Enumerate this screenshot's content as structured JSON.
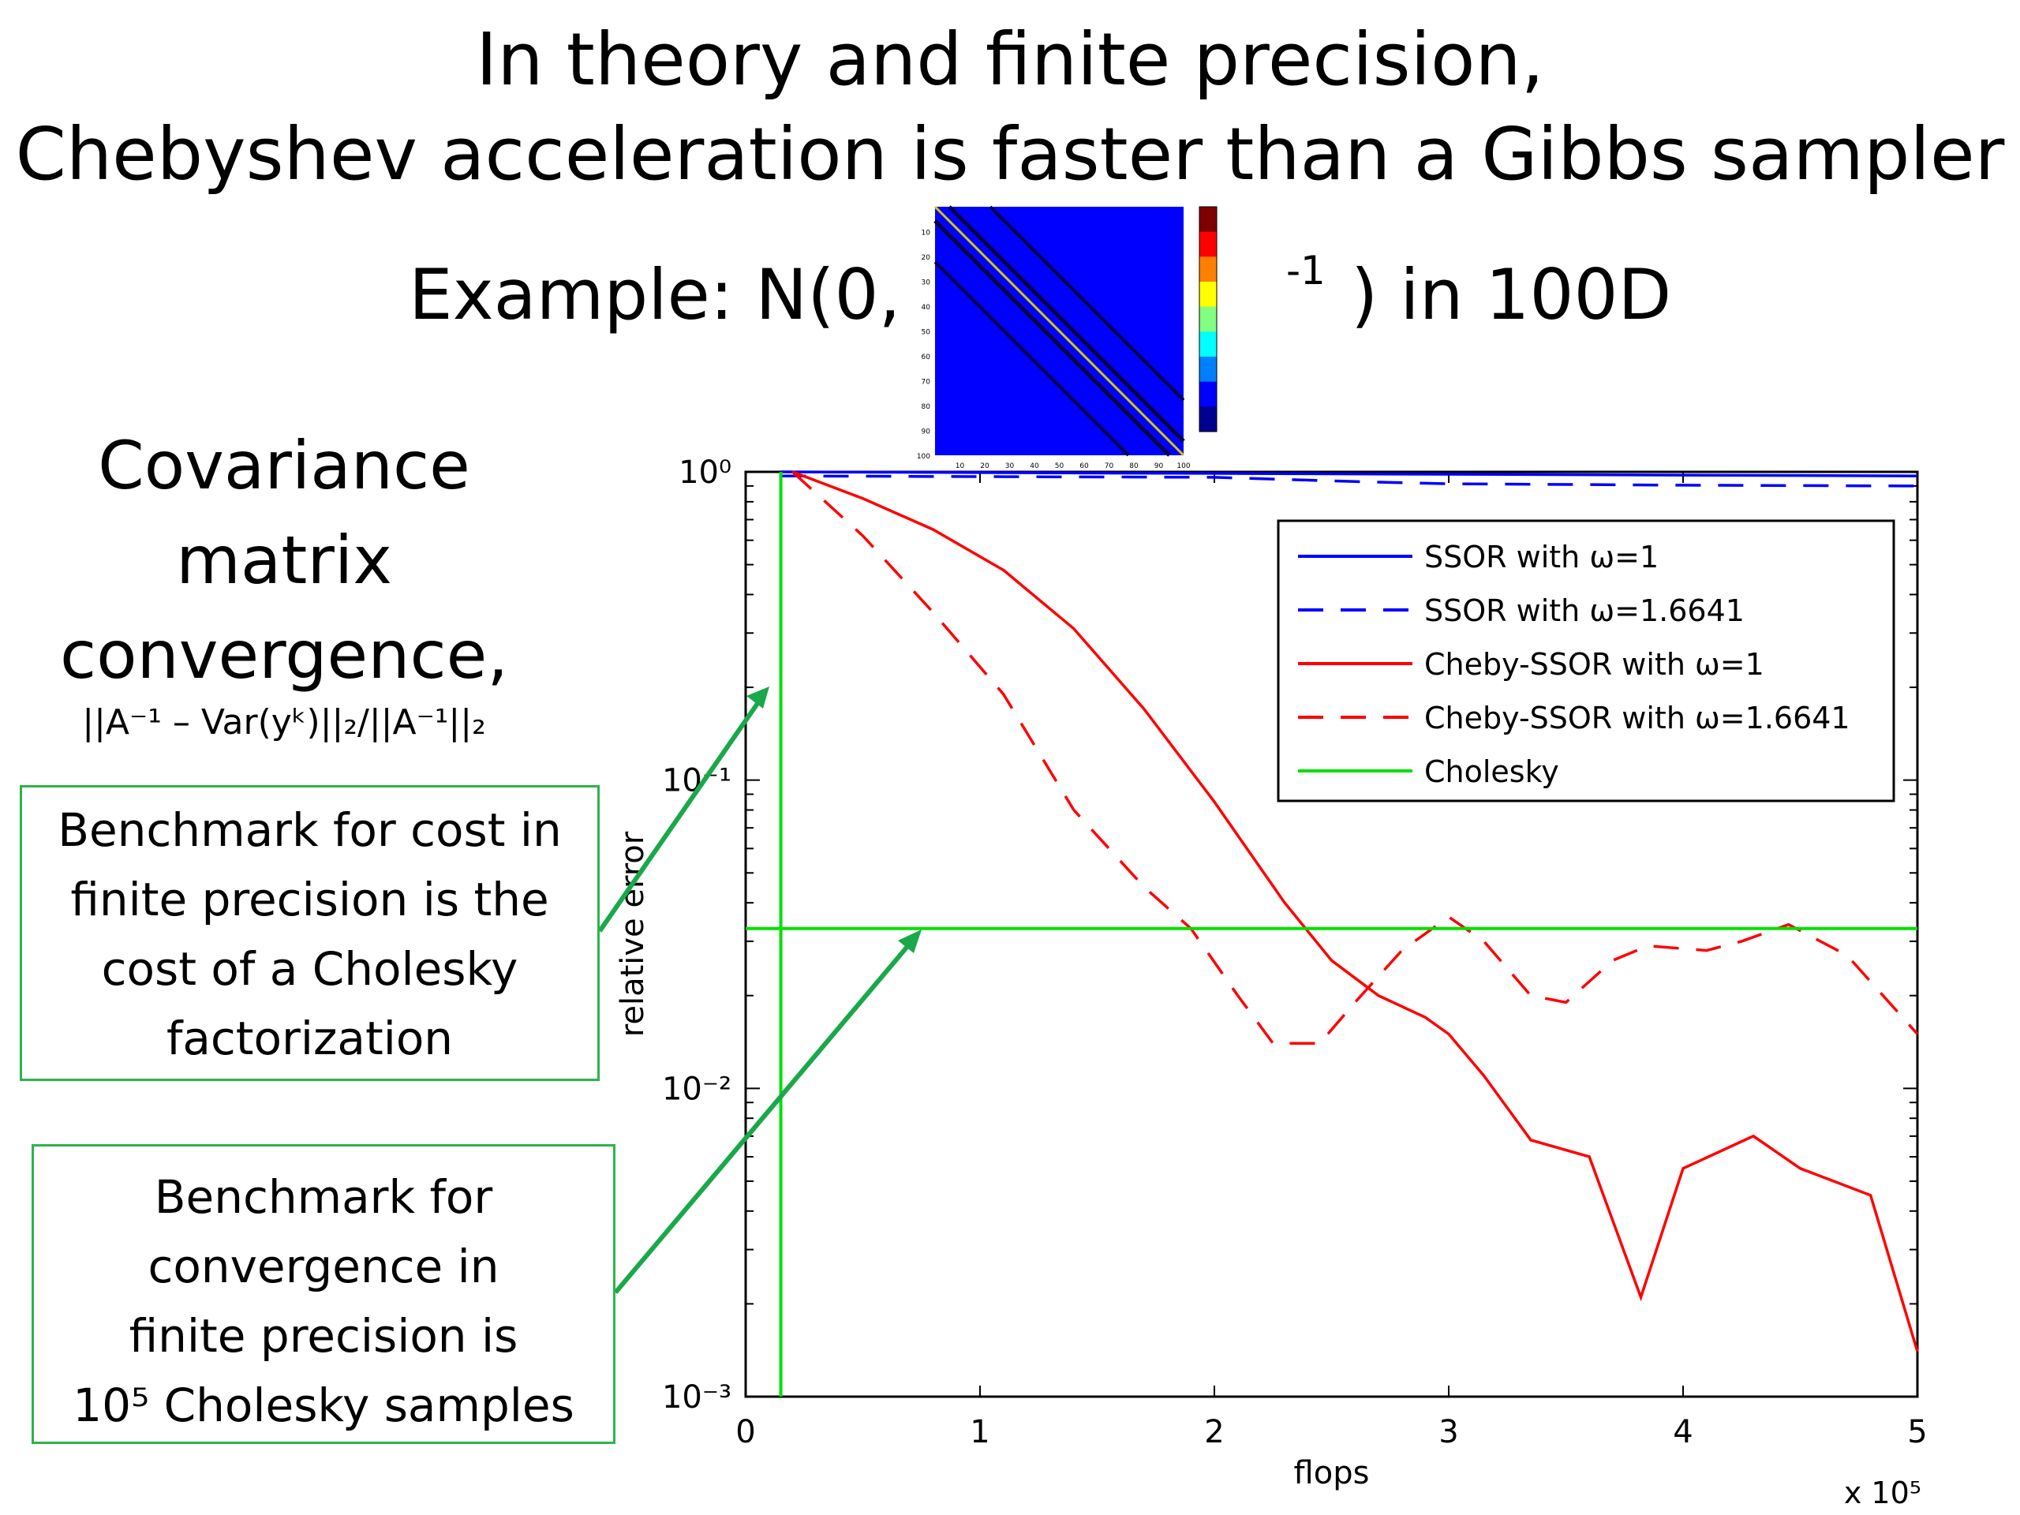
{
  "slide": {
    "title_line1": "In theory and finite precision,",
    "title_line2": "Chebyshev acceleration is faster than a Gibbs sampler",
    "example_prefix": "Example:  N(0,",
    "example_exponent": "-1",
    "example_suffix": ") in 100D",
    "cov_line1": "Covariance",
    "cov_line2": "matrix",
    "cov_line3": "convergence,",
    "formula": "||A⁻¹ – Var(yᵏ)||₂/||A⁻¹||₂",
    "box1_lines": [
      "Benchmark for cost in",
      "finite precision is the",
      "cost of a Cholesky",
      "factorization"
    ],
    "box2_lines": [
      "Benchmark for",
      "convergence in",
      "finite precision is",
      "10⁵ Cholesky samples"
    ]
  },
  "colors": {
    "ssor": "#0000ff",
    "cheby": "#ff0000",
    "cholesky": "#00e000",
    "arrow": "#1aa84a",
    "matrix_bg": "#0000ff"
  },
  "chart_data": {
    "type": "line",
    "xlabel": "flops",
    "ylabel": "relative error",
    "x_multiplier_label": "x 10⁵",
    "xlim": [
      0,
      5
    ],
    "ylim": [
      0.001,
      1
    ],
    "yscale": "log",
    "x_ticks": [
      "0",
      "1",
      "2",
      "3",
      "4",
      "5"
    ],
    "y_ticks": [
      "10⁰",
      "10⁻¹",
      "10⁻²",
      "10⁻³"
    ],
    "legend_position": "top-right",
    "grid": false,
    "series": [
      {
        "name": "SSOR with ω=1",
        "style": "solid",
        "color": "#0000ff",
        "x": [
          0.15,
          5.0
        ],
        "y": [
          1.0,
          0.97
        ]
      },
      {
        "name": "SSOR with ω=1.6641",
        "style": "dashed",
        "color": "#0000ff",
        "x": [
          0.15,
          1.0,
          2.0,
          2.6,
          3.0,
          4.0,
          5.0
        ],
        "y": [
          0.97,
          0.965,
          0.96,
          0.93,
          0.915,
          0.905,
          0.9
        ]
      },
      {
        "name": "Cheby-SSOR with ω=1",
        "style": "solid",
        "color": "#ff0000",
        "x": [
          0.2,
          0.5,
          0.8,
          1.1,
          1.4,
          1.7,
          2.0,
          2.3,
          2.5,
          2.7,
          2.9,
          3.0,
          3.15,
          3.35,
          3.6,
          3.82,
          4.0,
          4.3,
          4.5,
          4.8,
          5.0
        ],
        "y": [
          1.0,
          0.82,
          0.65,
          0.48,
          0.31,
          0.17,
          0.085,
          0.04,
          0.026,
          0.02,
          0.017,
          0.015,
          0.011,
          0.0068,
          0.006,
          0.0021,
          0.0055,
          0.007,
          0.0055,
          0.0045,
          0.0014
        ]
      },
      {
        "name": "Cheby-SSOR with ω=1.6641",
        "style": "dashed",
        "color": "#ff0000",
        "x": [
          0.2,
          0.5,
          0.8,
          1.1,
          1.4,
          1.7,
          1.9,
          2.1,
          2.25,
          2.45,
          2.6,
          2.8,
          3.0,
          3.15,
          3.35,
          3.5,
          3.7,
          3.85,
          4.1,
          4.25,
          4.45,
          4.7,
          5.0
        ],
        "y": [
          1.0,
          0.62,
          0.35,
          0.19,
          0.08,
          0.045,
          0.033,
          0.02,
          0.014,
          0.014,
          0.019,
          0.028,
          0.036,
          0.03,
          0.02,
          0.019,
          0.026,
          0.029,
          0.028,
          0.03,
          0.034,
          0.027,
          0.015
        ]
      },
      {
        "name": "Cholesky",
        "style": "solid",
        "color": "#00e000",
        "x_vertical": 0.15,
        "y_horizontal": 0.033
      }
    ]
  },
  "inset": {
    "tick_labels": [
      "10",
      "20",
      "30",
      "40",
      "50",
      "60",
      "70",
      "80",
      "90",
      "100"
    ]
  }
}
